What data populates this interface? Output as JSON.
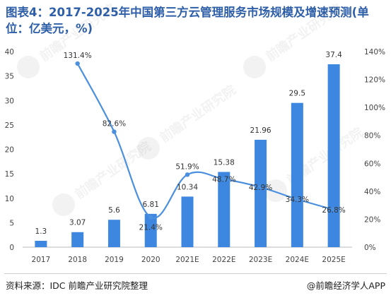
{
  "title": "图表4：2017-2025年中国第三方云管理服务市场规模及增速预测(单位：亿美元，%)",
  "source": "资料来源：IDC 前瞻产业研究院整理",
  "brand": "@前瞻经济学人APP",
  "watermark_text": "前瞻产业研究院",
  "colors": {
    "bar": "#3d87e0",
    "line": "#4b8fdf",
    "title": "#2e5fa8",
    "text": "#333333"
  },
  "chart_data": {
    "type": "bar",
    "categories": [
      "2017",
      "2018",
      "2019",
      "2020",
      "2021E",
      "2022E",
      "2023E",
      "2024E",
      "2025E"
    ],
    "series": [
      {
        "name": "",
        "type": "bar",
        "axis": "left",
        "values": [
          1.3,
          3.07,
          5.6,
          6.81,
          10.34,
          15.38,
          21.96,
          29.5,
          37.4
        ],
        "labels": [
          "1.3",
          "3.07",
          "5.6",
          "6.81",
          "10.34",
          "15.38",
          "21.96",
          "29.5",
          "37.4"
        ]
      },
      {
        "name": "",
        "type": "line",
        "axis": "right",
        "values": [
          null,
          131.4,
          82.6,
          21.4,
          51.9,
          48.7,
          42.9,
          34.3,
          26.8
        ],
        "labels": [
          "",
          "131.4%",
          "82.6%",
          "21.4%",
          "51.9%",
          "48.7%",
          "42.9%",
          "34.3%",
          "26.8%"
        ]
      }
    ],
    "y_left": {
      "min": 0,
      "max": 40,
      "ticks": [
        "0",
        "5",
        "10",
        "15",
        "20",
        "25",
        "30",
        "35",
        "40"
      ]
    },
    "y_right": {
      "min": 0,
      "max": 140,
      "ticks": [
        "0%",
        "20%",
        "40%",
        "60%",
        "80%",
        "100%",
        "120%",
        "140%"
      ]
    },
    "grid": false,
    "legend": "none"
  }
}
